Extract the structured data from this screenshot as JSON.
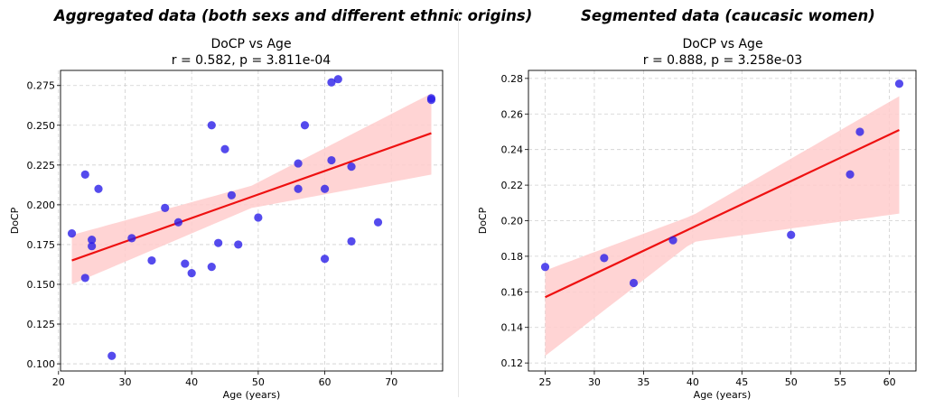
{
  "charts": [
    {
      "heading": "Aggregated data (both sexs and different ethnic origins)",
      "chart_data": {
        "type": "scatter",
        "title": "DoCP vs Age",
        "subtitle": "r = 0.582, p = 3.811e-04",
        "xlabel": "Age (years)",
        "ylabel": "DoCP",
        "xlim": [
          20.3,
          77.7
        ],
        "ylim": [
          0.0955,
          0.2845
        ],
        "xticks": [
          20,
          30,
          40,
          50,
          60,
          70
        ],
        "yticks": [
          0.1,
          0.125,
          0.15,
          0.175,
          0.2,
          0.225,
          0.25,
          0.275
        ],
        "ytick_labels": [
          "0.100",
          "0.125",
          "0.150",
          "0.175",
          "0.200",
          "0.225",
          "0.250",
          "0.275"
        ],
        "grid": true,
        "points": {
          "color": "#2b1ee8",
          "x": [
            22,
            24,
            24,
            25,
            25,
            26,
            28,
            31,
            34,
            36,
            38,
            39,
            40,
            43,
            43,
            44,
            45,
            46,
            47,
            50,
            56,
            56,
            57,
            60,
            60,
            61,
            61,
            62,
            64,
            64,
            68,
            76,
            76
          ],
          "y": [
            0.182,
            0.219,
            0.154,
            0.178,
            0.174,
            0.21,
            0.105,
            0.179,
            0.165,
            0.198,
            0.189,
            0.163,
            0.157,
            0.25,
            0.161,
            0.176,
            0.235,
            0.206,
            0.175,
            0.192,
            0.226,
            0.21,
            0.25,
            0.21,
            0.166,
            0.228,
            0.277,
            0.279,
            0.224,
            0.177,
            0.189,
            0.267,
            0.266
          ]
        },
        "fit_line": {
          "color": "#ee1111",
          "x": [
            22,
            76
          ],
          "y": [
            0.165,
            0.245
          ]
        },
        "confidence_band": {
          "color": "#ffcccc",
          "x": [
            22,
            49,
            76
          ],
          "lower": [
            0.15,
            0.198,
            0.219
          ],
          "upper": [
            0.181,
            0.212,
            0.27
          ]
        }
      }
    },
    {
      "heading": "Segmented data (caucasic women)",
      "chart_data": {
        "type": "scatter",
        "title": "DoCP vs Age",
        "subtitle": "r = 0.888, p = 3.258e-03",
        "xlabel": "Age (years)",
        "ylabel": "DoCP",
        "xlim": [
          23.3,
          62.7
        ],
        "ylim": [
          0.1155,
          0.2845
        ],
        "xticks": [
          25,
          30,
          35,
          40,
          45,
          50,
          55,
          60
        ],
        "yticks": [
          0.12,
          0.14,
          0.16,
          0.18,
          0.2,
          0.22,
          0.24,
          0.26,
          0.28
        ],
        "ytick_labels": [
          "0.12",
          "0.14",
          "0.16",
          "0.18",
          "0.20",
          "0.22",
          "0.24",
          "0.26",
          "0.28"
        ],
        "grid": true,
        "points": {
          "color": "#2b1ee8",
          "x": [
            25,
            31,
            34,
            38,
            50,
            56,
            57,
            61
          ],
          "y": [
            0.174,
            0.179,
            0.165,
            0.189,
            0.192,
            0.226,
            0.25,
            0.277
          ]
        },
        "fit_line": {
          "color": "#ee1111",
          "x": [
            25,
            61
          ],
          "y": [
            0.157,
            0.251
          ]
        },
        "confidence_band": {
          "color": "#ffcccc",
          "x": [
            25,
            40,
            61
          ],
          "lower": [
            0.124,
            0.188,
            0.204
          ],
          "upper": [
            0.172,
            0.203,
            0.27
          ]
        }
      }
    }
  ]
}
